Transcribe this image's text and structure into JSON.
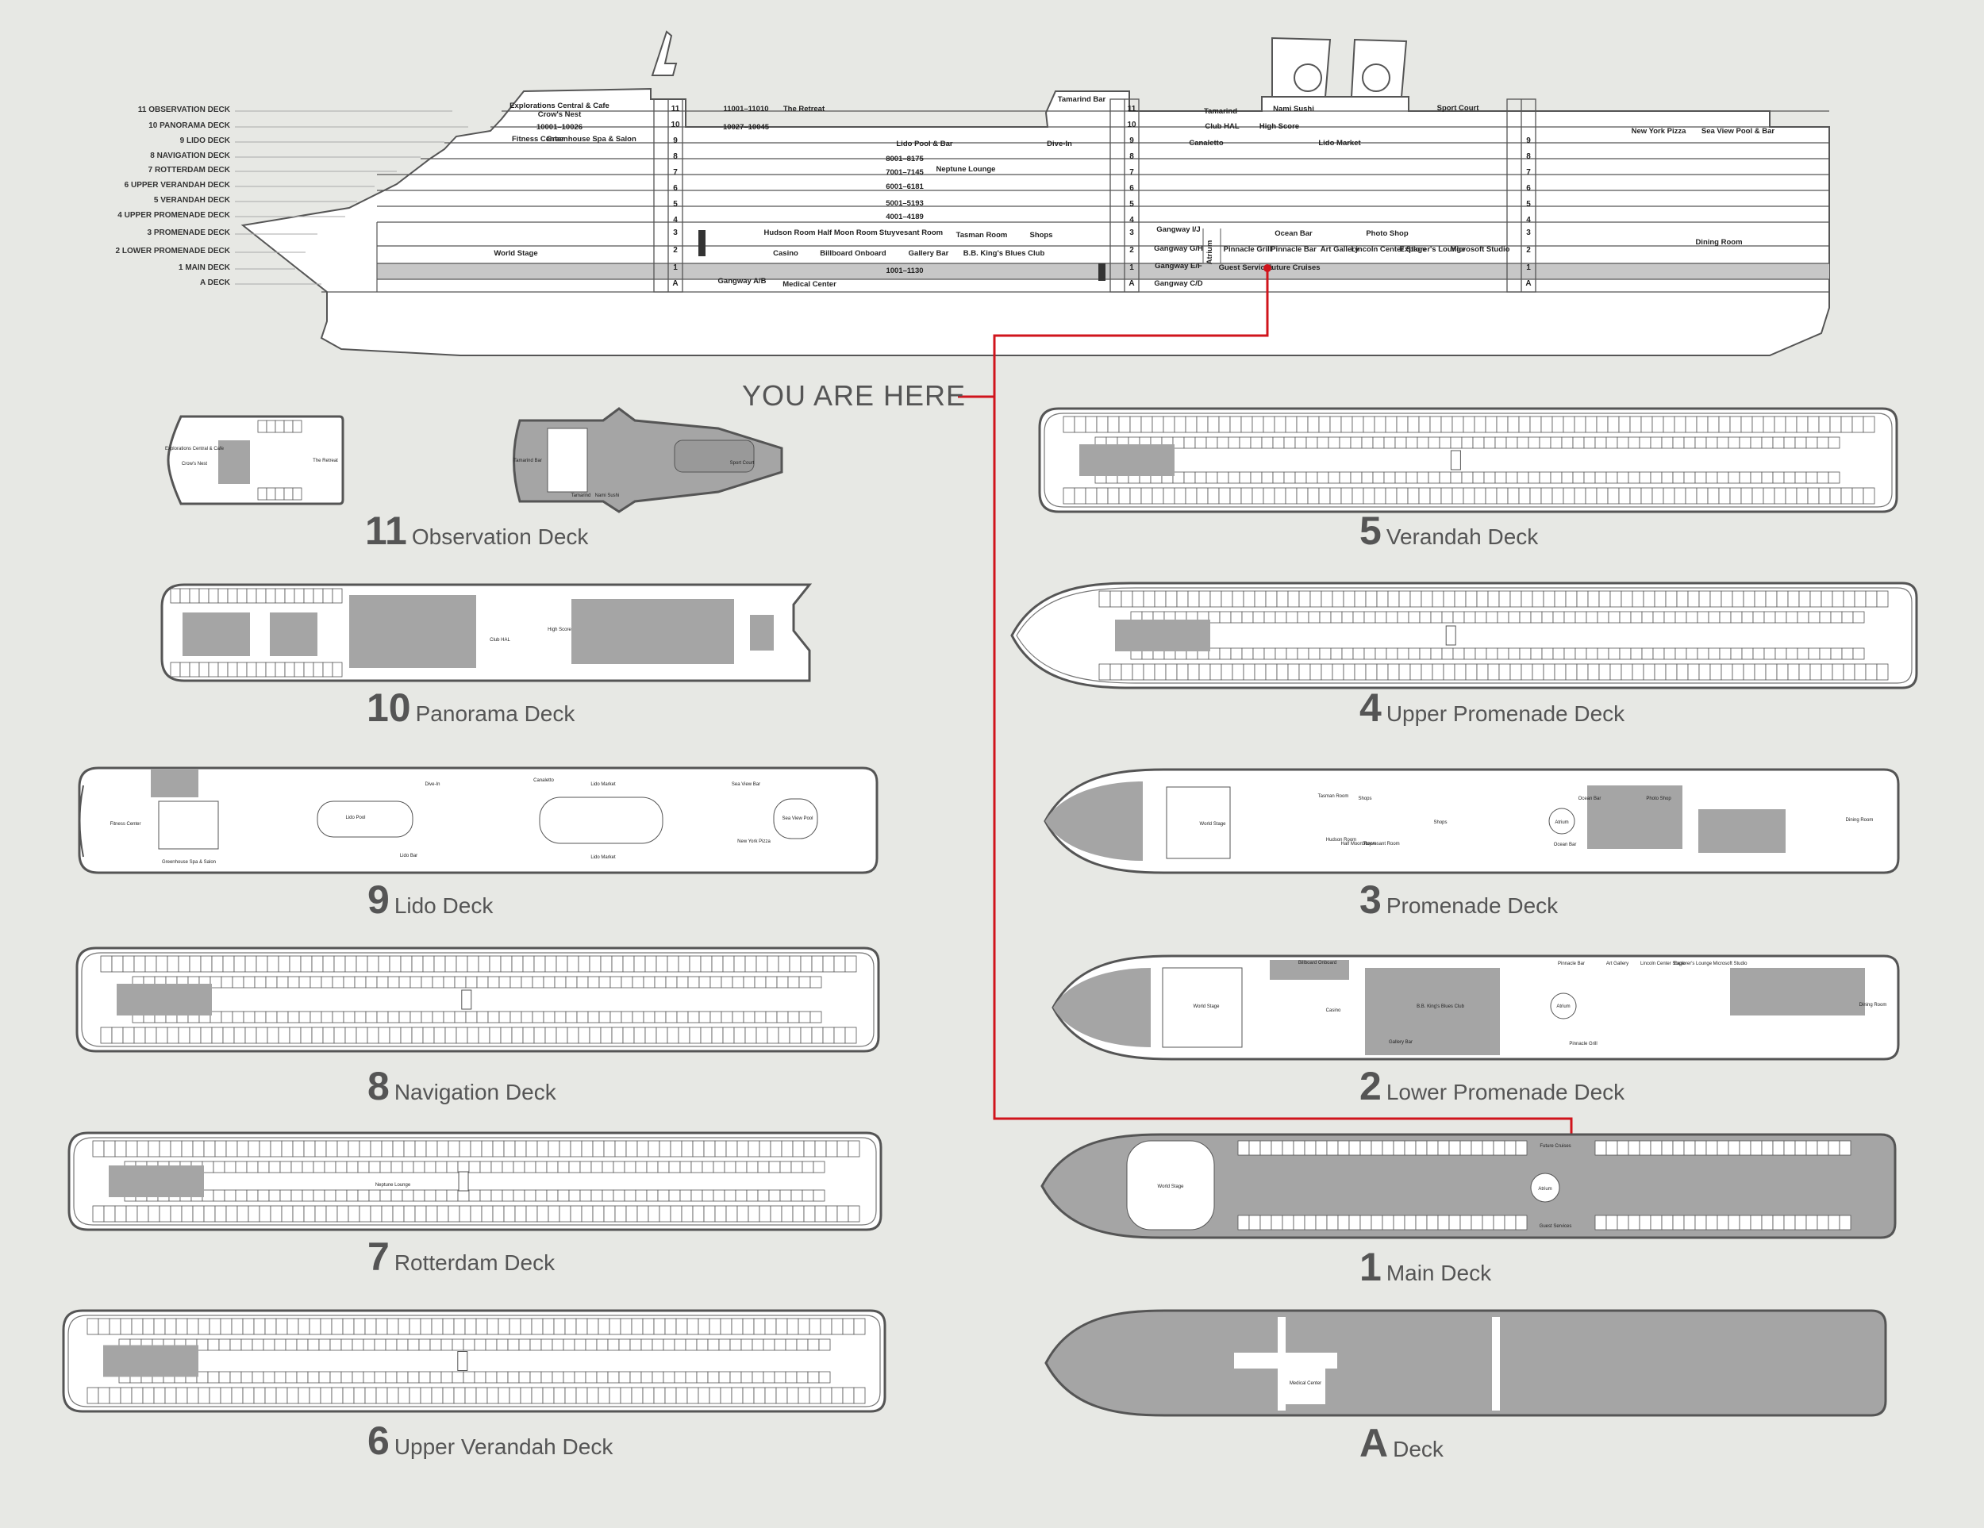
{
  "profile_labels": [
    "11 OBSERVATION DECK",
    "10 PANORAMA DECK",
    "9 LIDO DECK",
    "8 NAVIGATION DECK",
    "7 ROTTERDAM DECK",
    "6 UPPER VERANDAH DECK",
    "5 VERANDAH DECK",
    "4 UPPER PROMENADE DECK",
    "3 PROMENADE DECK",
    "2 LOWER PROMENADE DECK",
    "1 MAIN DECK",
    "A DECK"
  ],
  "deck_numbers": [
    "11",
    "10",
    "9",
    "8",
    "7",
    "6",
    "5",
    "4",
    "3",
    "2",
    "1",
    "A"
  ],
  "ship_text": {
    "explorations": "Explorations Central & Cafe",
    "crows_nest": "Crow's Nest",
    "fitness": "Fitness Center",
    "greenhouse": "Greenhouse Spa & Salon",
    "r10": "10001–10026",
    "r11": "11001–11010",
    "retreat": "The Retreat",
    "r10b": "10027–10045",
    "lido_pool": "Lido Pool & Bar",
    "r8": "8001–8175",
    "r7": "7001–7145",
    "neptune": "Neptune Lounge",
    "r6": "6001–6181",
    "r5": "5001–5193",
    "r4": "4001–4189",
    "dive_in": "Dive-In",
    "tamarind_bar": "Tamarind Bar",
    "tamarind": "Tamarind",
    "nami": "Nami Sushi",
    "club_hal": "Club HAL",
    "high_score": "High Score",
    "sport_court": "Sport Court",
    "canaletto": "Canaletto",
    "lido_market": "Lido Market",
    "ny_pizza": "New York Pizza",
    "sea_view": "Sea View Pool & Bar",
    "world_stage": "World Stage",
    "hudson": "Hudson Room",
    "half_moon": "Half Moon Room",
    "stuyvesant": "Stuyvesant Room",
    "tasman": "Tasman Room",
    "shops": "Shops",
    "casino": "Casino",
    "billboard": "Billboard Onboard",
    "gallery_bar": "Gallery Bar",
    "bb_king": "B.B. King's Blues Club",
    "r1": "1001–1130",
    "gangway_ab": "Gangway A/B",
    "medical": "Medical Center",
    "gangway_ij": "Gangway I/J",
    "gangway_gh": "Gangway G/H",
    "gangway_ef": "Gangway E/F",
    "gangway_cd": "Gangway C/D",
    "atrium": "Atrium",
    "ocean_bar": "Ocean Bar",
    "photo_shop": "Photo Shop",
    "pinnacle_grill": "Pinnacle Grill",
    "pinnacle_bar": "Pinnacle Bar",
    "art_gallery": "Art Gallery",
    "lincoln": "Lincoln Center Stage",
    "explorers": "Explorer's Lounge",
    "microsoft": "Microsoft Studio",
    "guest_services": "Guest Services",
    "future_cruises": "Future Cruises",
    "dining_room": "Dining Room"
  },
  "you_are_here": "YOU ARE HERE",
  "decks": [
    {
      "id": "d11",
      "num": "11",
      "name": "Observation Deck"
    },
    {
      "id": "d10",
      "num": "10",
      "name": "Panorama Deck"
    },
    {
      "id": "d9",
      "num": "9",
      "name": "Lido Deck"
    },
    {
      "id": "d8",
      "num": "8",
      "name": "Navigation Deck"
    },
    {
      "id": "d7",
      "num": "7",
      "name": "Rotterdam Deck"
    },
    {
      "id": "d6",
      "num": "6",
      "name": "Upper Verandah Deck"
    },
    {
      "id": "d5",
      "num": "5",
      "name": "Verandah Deck"
    },
    {
      "id": "d4",
      "num": "4",
      "name": "Upper Promenade Deck"
    },
    {
      "id": "d3",
      "num": "3",
      "name": "Promenade Deck"
    },
    {
      "id": "d2",
      "num": "2",
      "name": "Lower Promenade Deck"
    },
    {
      "id": "d1",
      "num": "1",
      "name": "Main Deck"
    },
    {
      "id": "dA",
      "num": "A",
      "name": "Deck"
    }
  ],
  "plan_text": {
    "explorations": "Explorations Central & Cafe",
    "crows_nest": "Crow's Nest",
    "retreat": "The Retreat",
    "tamarind_bar": "Tamarind Bar",
    "tamarind": "Tamarind",
    "nami": "Nami Sushi",
    "sport_court": "Sport Court",
    "club_hal": "Club HAL",
    "high_score": "High Score",
    "fitness": "Fitness Center",
    "greenhouse": "Greenhouse Spa & Salon",
    "lido_pool": "Lido Pool",
    "lido_bar": "Lido Bar",
    "dive_in": "Dive-In",
    "canaletto": "Canaletto",
    "lido_market": "Lido Market",
    "sea_view_bar": "Sea View Bar",
    "sea_view_pool": "Sea View Pool",
    "ny_pizza": "New York Pizza",
    "neptune": "Neptune Lounge",
    "world_stage": "World Stage",
    "tasman": "Tasman Room",
    "shops": "Shops",
    "hudson": "Hudson Room",
    "half_moon": "Half Moon Room",
    "stuyvesant": "Stuyvesant Room",
    "ocean_bar": "Ocean Bar",
    "photo_shop": "Photo Shop",
    "atrium": "Atrium",
    "dining_room": "Dining Room",
    "billboard": "Billboard Onboard",
    "casino": "Casino",
    "bb_king": "B.B. King's Blues Club",
    "gallery_bar": "Gallery Bar",
    "pinnacle_bar": "Pinnacle Bar",
    "pinnacle_grill": "Pinnacle Grill",
    "art_gallery": "Art Gallery",
    "lincoln": "Lincoln Center Stage",
    "explorers": "Explorer's Lounge",
    "microsoft": "Microsoft Studio",
    "future_cruises": "Future Cruises",
    "guest_services": "Guest Services",
    "medical": "Medical Center"
  },
  "colors": {
    "background": "#e7e8e4",
    "hull": "#ffffff",
    "line": "#555555",
    "shaded": "#999999",
    "marker": "#d0141c"
  }
}
